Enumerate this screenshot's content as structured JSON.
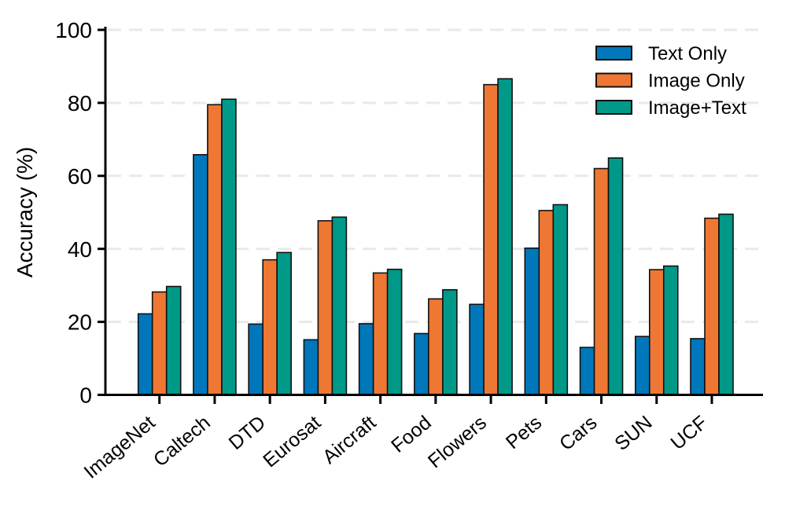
{
  "chart_data": {
    "type": "bar",
    "title": "",
    "xlabel": "",
    "ylabel": "Accuracy (%)",
    "ylim": [
      0,
      100
    ],
    "yticks": [
      0,
      20,
      40,
      60,
      80,
      100
    ],
    "grid": {
      "axis": "y",
      "style": "dashed",
      "color": "#e9e9e9",
      "on": true
    },
    "legend_position": "upper right inside plot, no frame",
    "categories": [
      "ImageNet",
      "Caltech",
      "DTD",
      "Eurosat",
      "Aircraft",
      "Food",
      "Flowers",
      "Pets",
      "Cars",
      "SUN",
      "UCF"
    ],
    "series": [
      {
        "name": "Text Only",
        "color": "#0077BB",
        "values": [
          22.2,
          65.8,
          19.4,
          15.1,
          19.5,
          16.8,
          24.8,
          40.2,
          13.0,
          16.0,
          15.4
        ]
      },
      {
        "name": "Image Only",
        "color": "#EE7733",
        "values": [
          28.2,
          79.5,
          37.0,
          47.7,
          33.4,
          26.3,
          85.0,
          50.5,
          62.0,
          34.3,
          48.4
        ]
      },
      {
        "name": "Image+Text",
        "color": "#009988",
        "values": [
          29.7,
          81.0,
          39.0,
          48.7,
          34.4,
          28.8,
          86.6,
          52.1,
          64.9,
          35.3,
          49.5
        ]
      }
    ],
    "colors": {
      "bar_edge": "#111111",
      "axis": "#000000",
      "background": "#ffffff"
    }
  }
}
